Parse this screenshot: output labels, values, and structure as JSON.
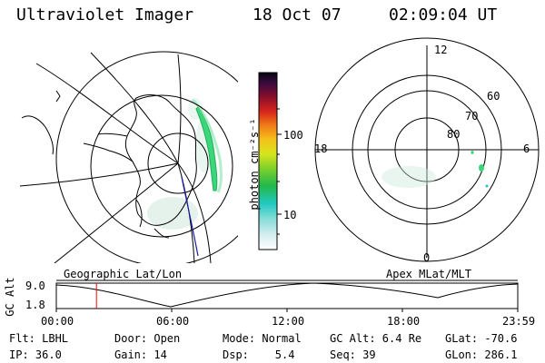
{
  "header": {
    "title": "Ultraviolet Imager",
    "date": "18 Oct 07",
    "time": "02:09:04 UT"
  },
  "colorbar": {
    "label": "photon cm⁻²s⁻¹",
    "ticks": [
      "100",
      "10"
    ]
  },
  "polar_plot": {
    "mlt_labels": [
      "12",
      "18",
      "6",
      "0"
    ],
    "lat_labels": [
      "60",
      "70",
      "80"
    ]
  },
  "timeline": {
    "ylabel": "GC Alt",
    "yticks": [
      "9.0",
      "1.8"
    ],
    "left_caption": "Geographic Lat/Lon",
    "right_caption": "Apex MLat/MLT",
    "xticks": [
      "00:00",
      "06:00",
      "12:00",
      "18:00",
      "23:59"
    ],
    "current_time_fraction": 0.087
  },
  "info": {
    "flt": "Flt: LBHL",
    "ip": "IP: 36.0",
    "door": "Door: Open",
    "gain": "Gain: 14",
    "mode": "Mode: Normal",
    "dsp": "Dsp:    5.4",
    "gc_alt": "GC Alt: 6.4 Re",
    "seq": "Seq: 39",
    "glat": "GLat: -70.6",
    "glon": "GLon: 286.1"
  },
  "colors": {
    "aurora": "#3cd67a",
    "aurora_dim": "#cfe9db",
    "marker": "#ff0000",
    "track": "#1a1aa8"
  }
}
